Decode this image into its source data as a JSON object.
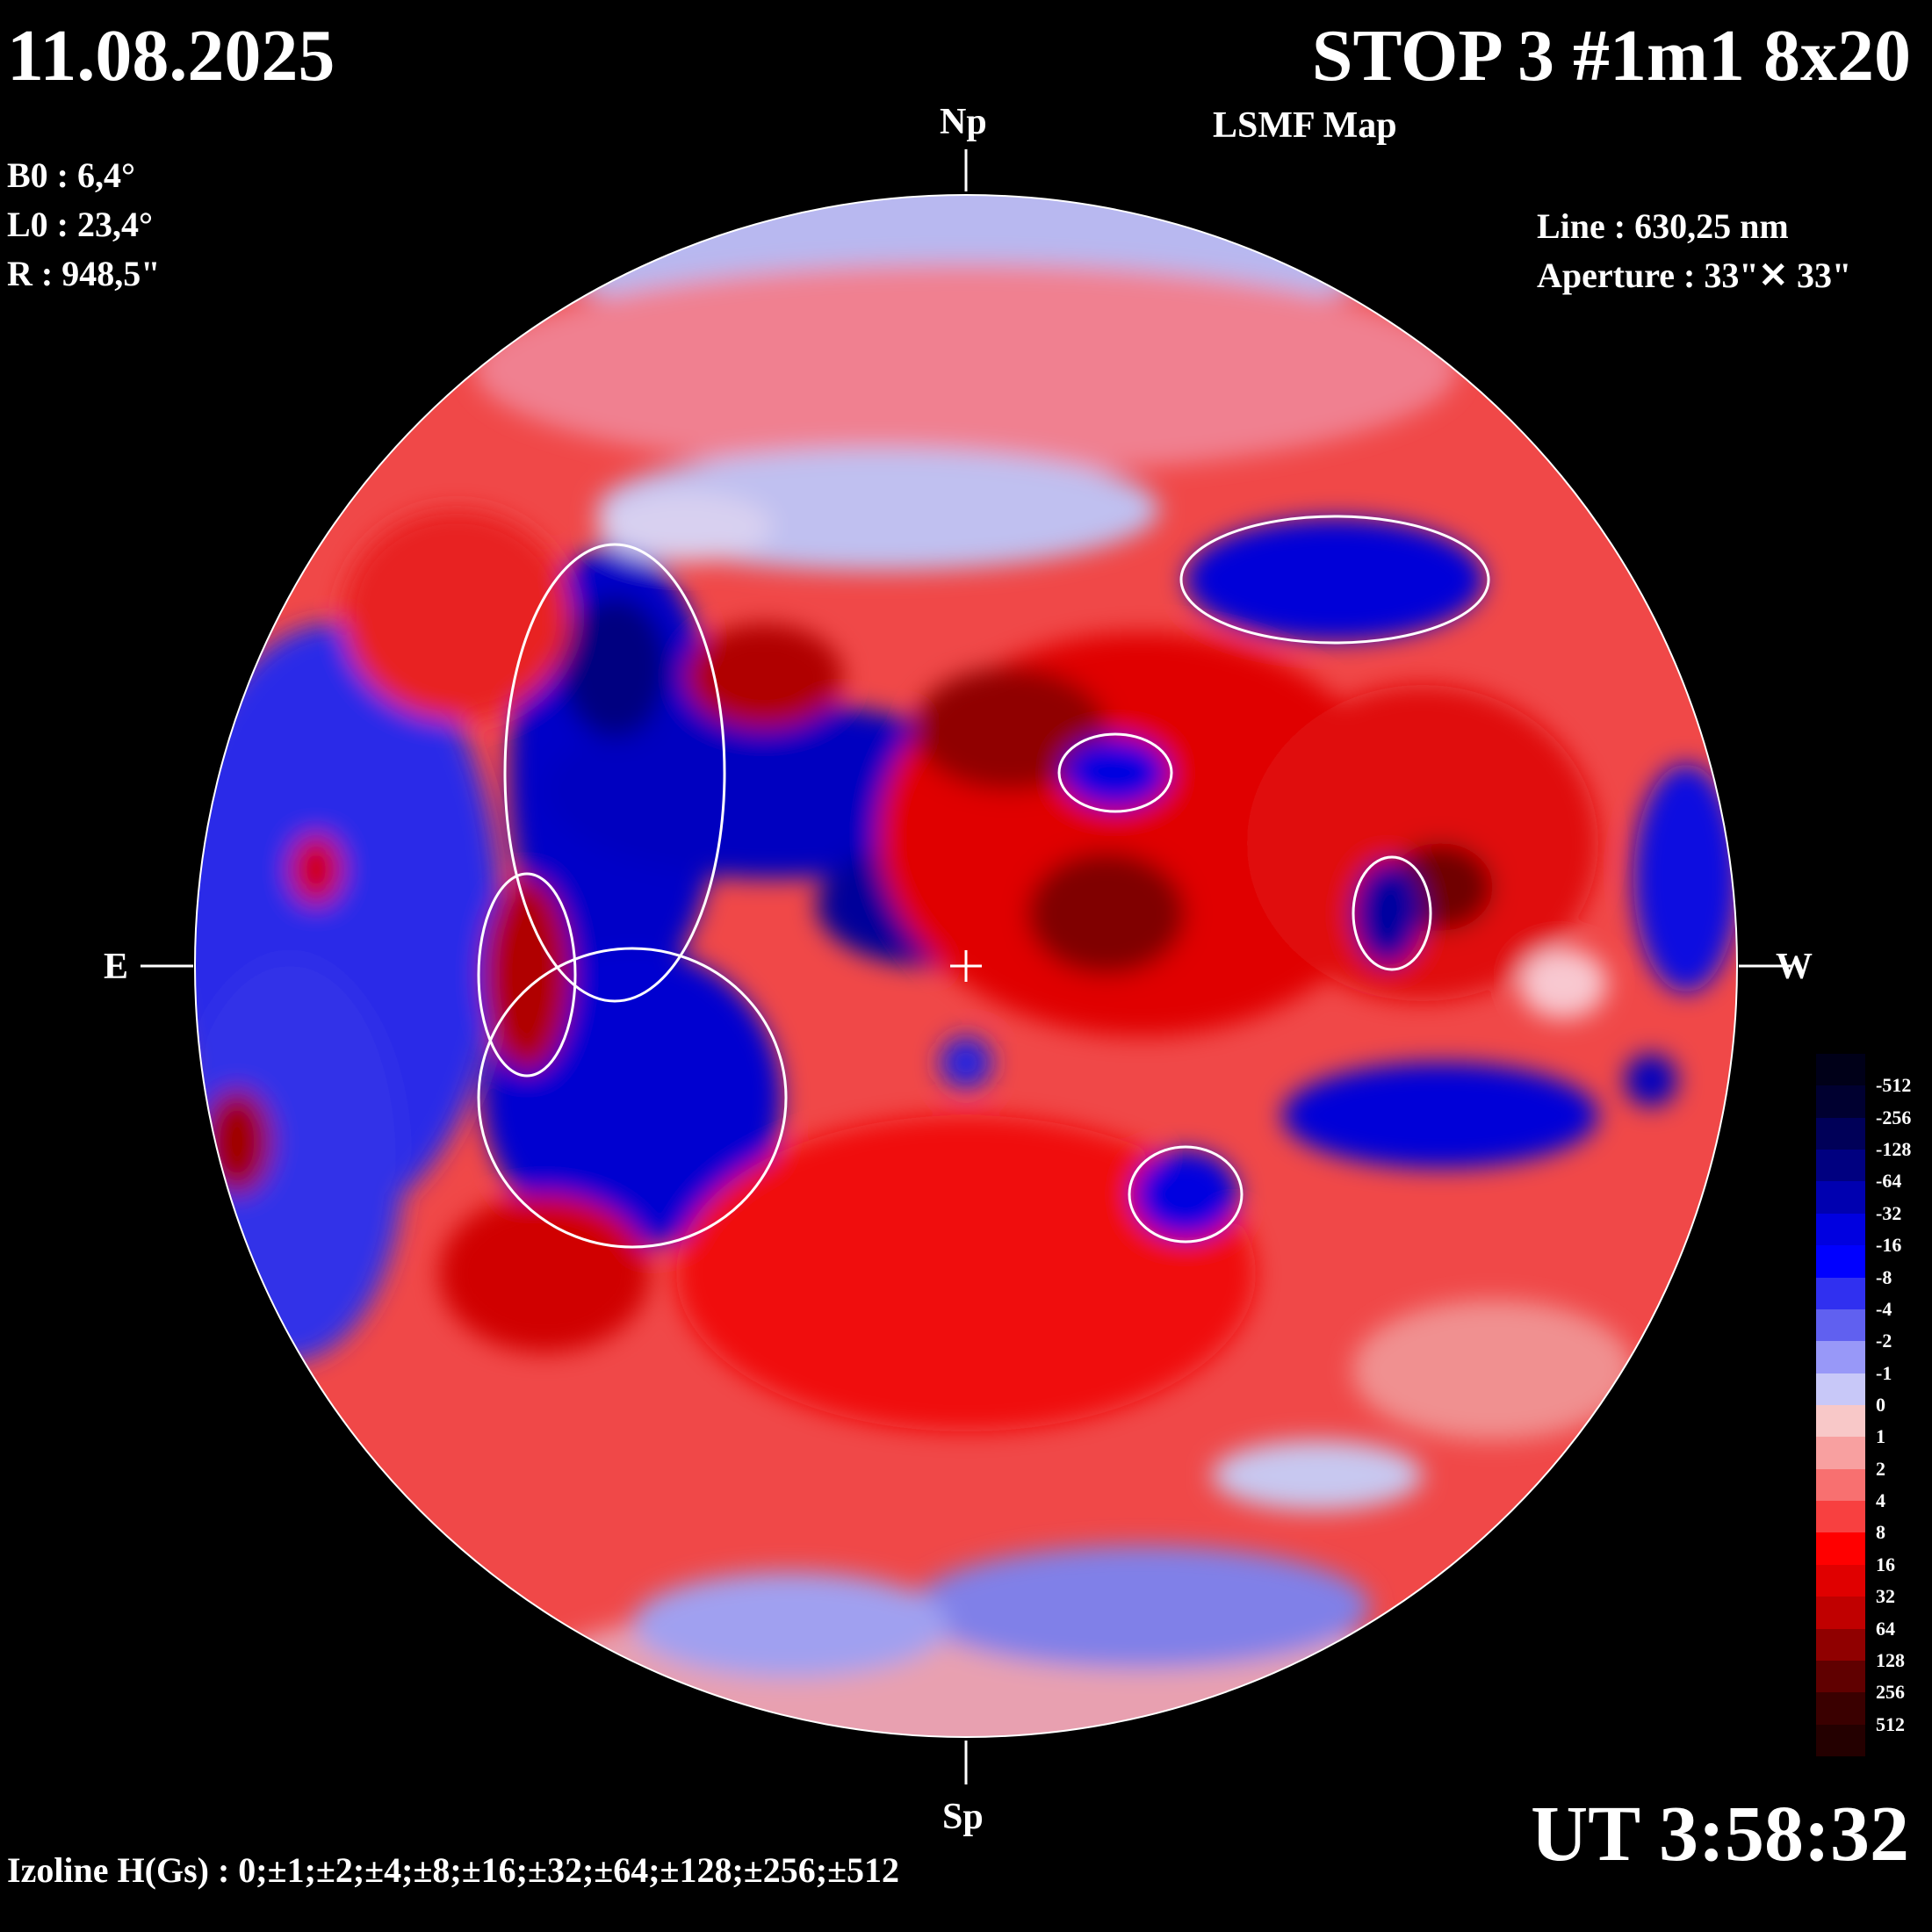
{
  "header": {
    "date": "11.08.2025",
    "title": "STOP 3 #1m1 8x20",
    "subtitle": "LSMF  Map"
  },
  "parameters": {
    "b0": "B0 : 6,4°",
    "l0": "L0 : 23,4°",
    "r": "R  : 948,5\""
  },
  "instrument": {
    "line": "Line :  630,25 nm",
    "aperture": "Aperture : 33\"✕ 33\""
  },
  "directions": {
    "north": "Np",
    "south": "Sp",
    "east": "E",
    "west": "W"
  },
  "time": "UT 3:58:32",
  "izoline": "Izoline H(Gs) : 0;±1;±2;±4;±8;±16;±32;±64;±128;±256;±512",
  "legend": {
    "labels": [
      "-512",
      "-256",
      "-128",
      "-64",
      "-32",
      "-16",
      "-8",
      "-4",
      "-2",
      "-1",
      "0",
      "1",
      "2",
      "4",
      "8",
      "16",
      "32",
      "64",
      "128",
      "256",
      "512"
    ],
    "colors": [
      "#000018",
      "#000030",
      "#000058",
      "#000080",
      "#0000b0",
      "#0000e0",
      "#0000ff",
      "#3030f0",
      "#6060f0",
      "#9898f8",
      "#c8c8f8",
      "#f8c8c8",
      "#f8a0a0",
      "#f87070",
      "#f84040",
      "#ff0000",
      "#e00000",
      "#c00000",
      "#900000",
      "#600000",
      "#3a0000",
      "#240000"
    ]
  },
  "colors": {
    "background": "#000000",
    "negative": "#0000dd",
    "positive": "#ff1a1a",
    "contour": "#ffffff"
  }
}
